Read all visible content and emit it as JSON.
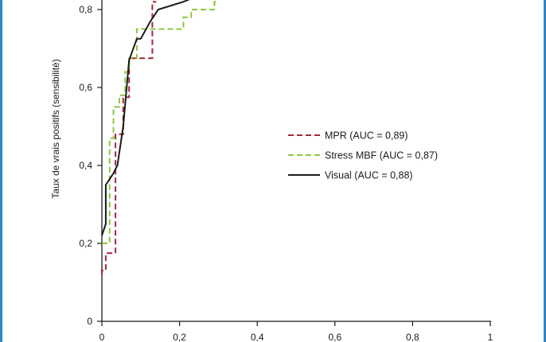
{
  "chart_data": {
    "type": "line",
    "title": "",
    "xlabel": "",
    "ylabel": "Taux de vrais positifs (sensibilité)",
    "xlim": [
      0,
      1
    ],
    "ylim": [
      0,
      0.82
    ],
    "x_ticks": [
      "0",
      "0,2",
      "0,4",
      "0,6",
      "0,8",
      "1"
    ],
    "y_ticks": [
      "0",
      "0,2",
      "0,4",
      "0,6",
      "0,8"
    ],
    "grid": false,
    "legend_position": "center-right",
    "series": [
      {
        "name": "MPR (AUC = 0,89)",
        "color": "#a3293a",
        "dash": "dashed",
        "step": true,
        "x": [
          0,
          0,
          0.01,
          0.01,
          0.035,
          0.035,
          0.055,
          0.055,
          0.07,
          0.07,
          0.13,
          0.13,
          0.14
        ],
        "y": [
          0.12,
          0.13,
          0.13,
          0.175,
          0.175,
          0.48,
          0.48,
          0.575,
          0.575,
          0.675,
          0.675,
          0.82,
          0.82
        ]
      },
      {
        "name": "Stress MBF (AUC = 0,87)",
        "color": "#8cc63f",
        "dash": "dashed",
        "step": true,
        "x": [
          0,
          0.02,
          0.02,
          0.03,
          0.03,
          0.045,
          0.045,
          0.06,
          0.06,
          0.07,
          0.07,
          0.09,
          0.09,
          0.14,
          0.14,
          0.21,
          0.21,
          0.23,
          0.23,
          0.29,
          0.29,
          0.3
        ],
        "y": [
          0.2,
          0.2,
          0.47,
          0.47,
          0.55,
          0.55,
          0.58,
          0.58,
          0.64,
          0.64,
          0.675,
          0.675,
          0.75,
          0.75,
          0.75,
          0.75,
          0.78,
          0.78,
          0.8,
          0.8,
          0.82,
          0.82
        ]
      },
      {
        "name": "Visual (AUC = 0,88)",
        "color": "#1a1a1a",
        "dash": "solid",
        "step": false,
        "x": [
          0,
          0.01,
          0.01,
          0.03,
          0.04,
          0.055,
          0.07,
          0.09,
          0.1,
          0.125,
          0.145,
          0.21,
          0.235
        ],
        "y": [
          0.22,
          0.25,
          0.35,
          0.38,
          0.4,
          0.5,
          0.67,
          0.725,
          0.725,
          0.77,
          0.8,
          0.82,
          0.83
        ]
      }
    ]
  }
}
